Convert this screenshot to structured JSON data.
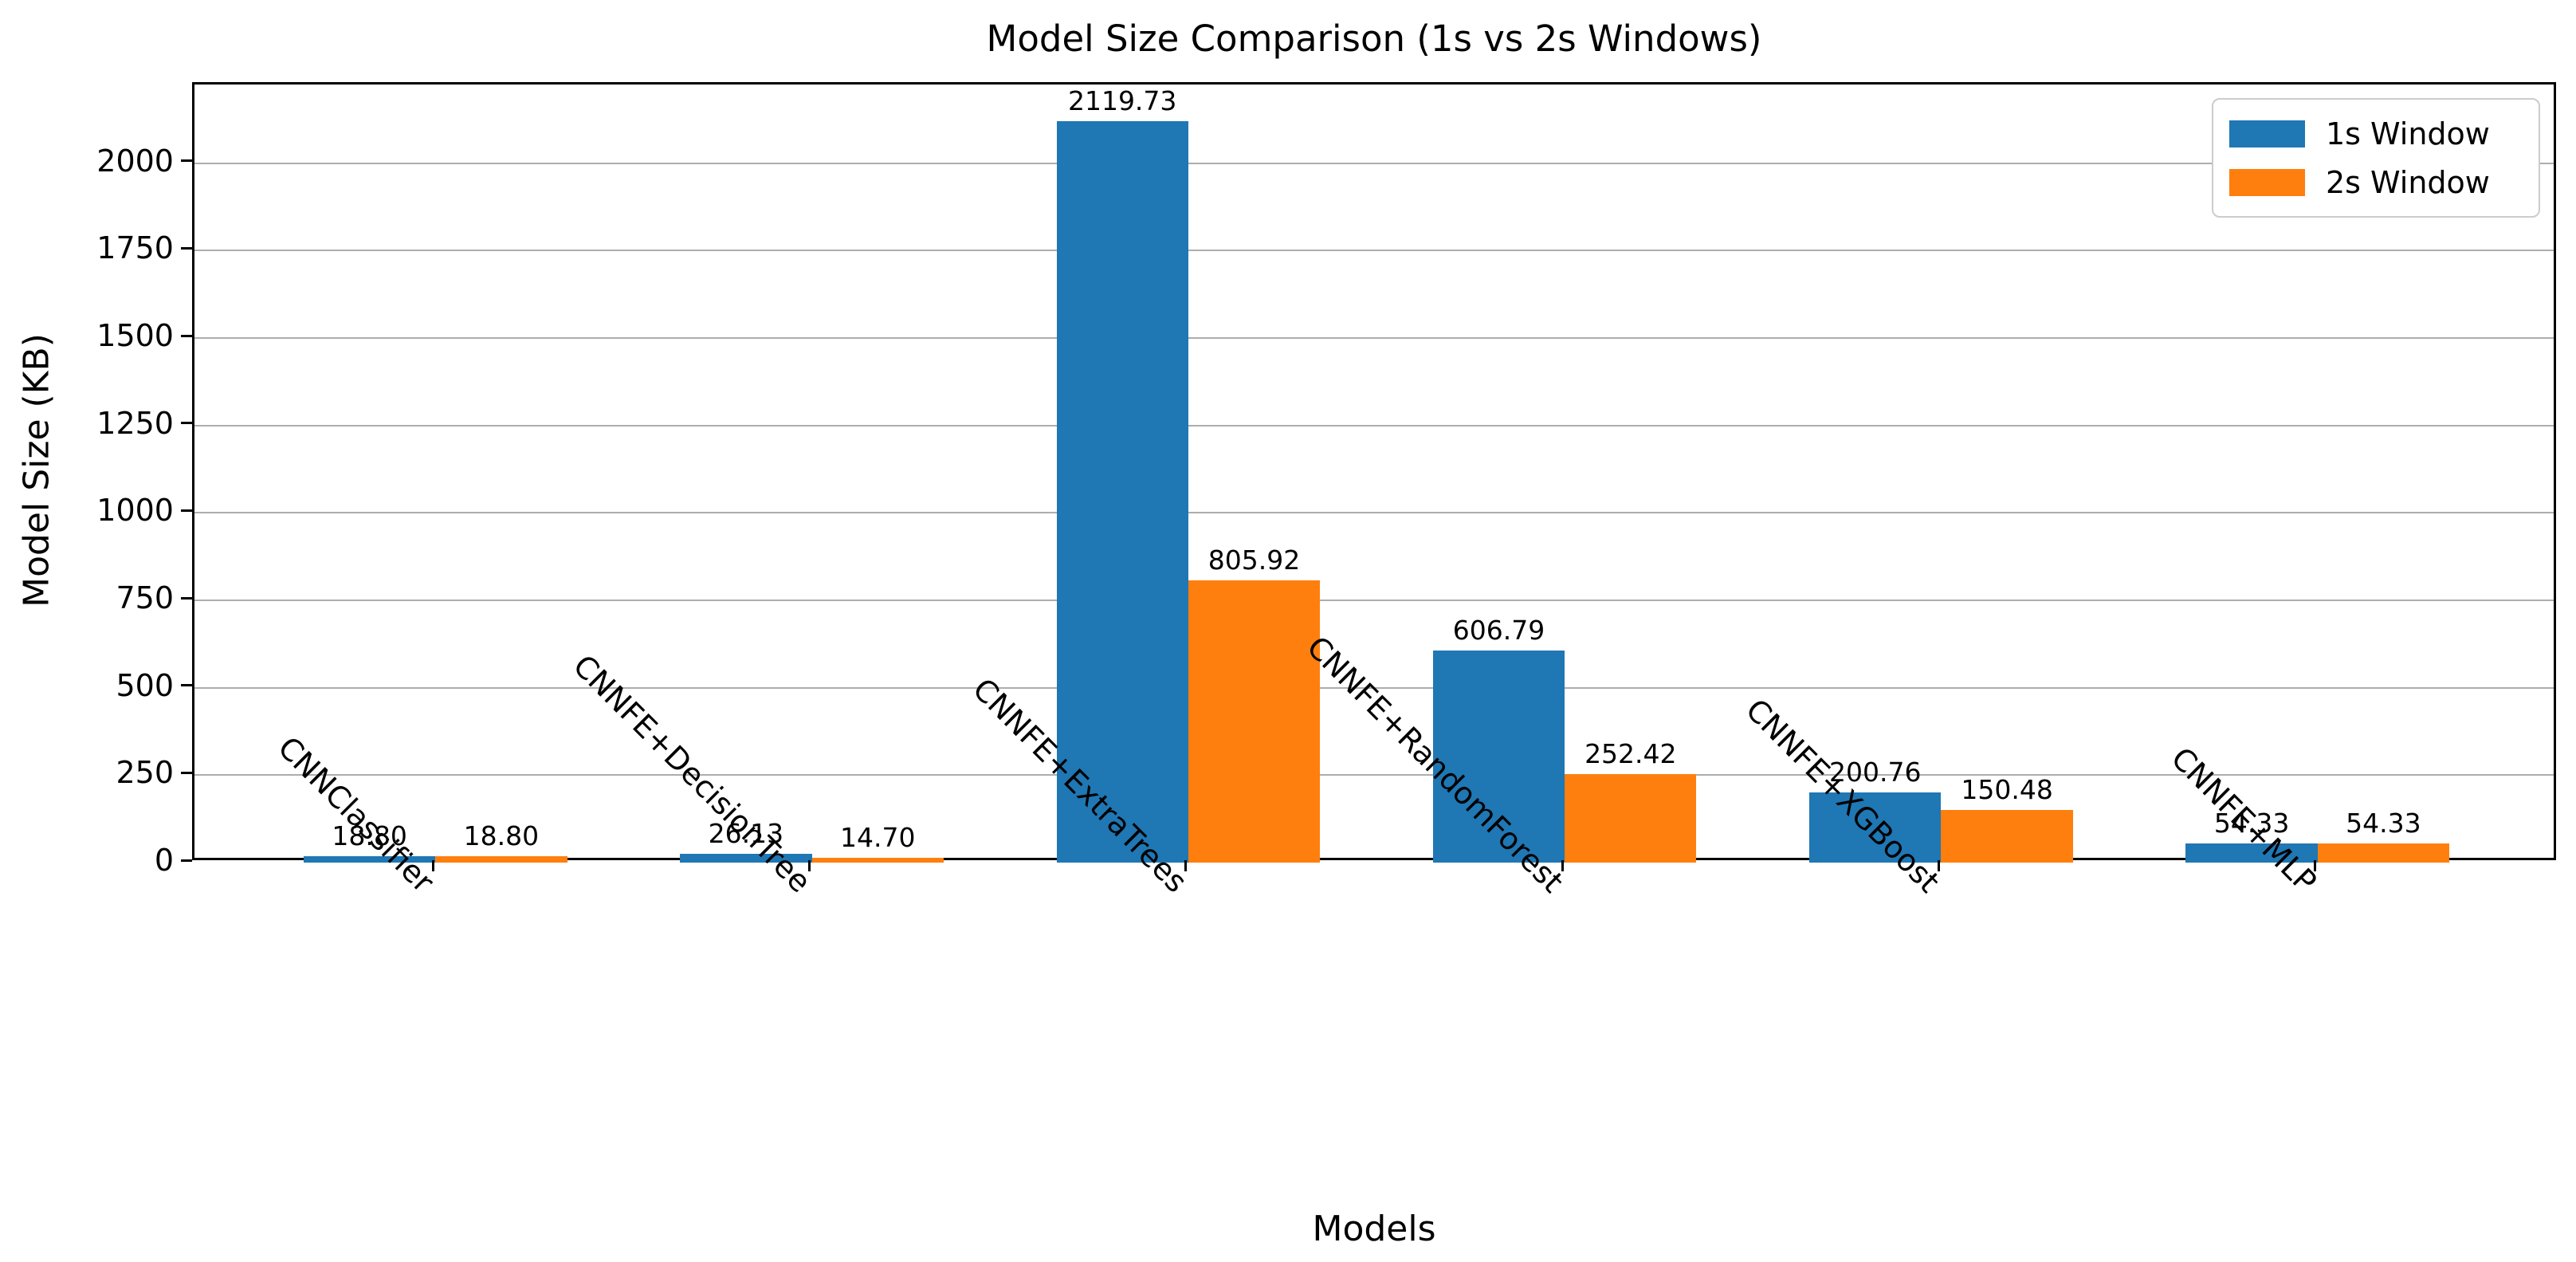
{
  "chart_data": {
    "type": "bar",
    "title": "Model Size Comparison (1s vs 2s Windows)",
    "xlabel": "Models",
    "ylabel": "Model Size (KB)",
    "categories": [
      "CNNClassifier",
      "CNNFE+DecisionTree",
      "CNNFE+ExtraTrees",
      "CNNFE+RandomForest",
      "CNNFE+XGBoost",
      "CNNFE+MLP"
    ],
    "series": [
      {
        "name": "1s Window",
        "color": "#1f77b4",
        "values": [
          18.8,
          26.13,
          2119.73,
          606.79,
          200.76,
          54.33
        ]
      },
      {
        "name": "2s Window",
        "color": "#ff7f0e",
        "values": [
          18.8,
          14.7,
          805.92,
          252.42,
          150.48,
          54.33
        ]
      }
    ],
    "bar_value_labels": {
      "1s Window": [
        "18.80",
        "26.13",
        "2119.73",
        "606.79",
        "200.76",
        "54.33"
      ],
      "2s Window": [
        "18.80",
        "14.70",
        "805.92",
        "252.42",
        "150.48",
        "54.33"
      ]
    },
    "yticks": [
      0,
      250,
      500,
      750,
      1000,
      1250,
      1500,
      1750,
      2000
    ],
    "ylim": [
      0,
      2225
    ],
    "grid": "horizontal",
    "legend_position": "upper right",
    "tick_label_rotation_deg": 45
  },
  "colors": {
    "series_1s": "#1f77b4",
    "series_2s": "#ff7f0e",
    "grid": "#adadad",
    "legend_border": "#cccccc",
    "text": "#000000",
    "background": "#ffffff"
  }
}
